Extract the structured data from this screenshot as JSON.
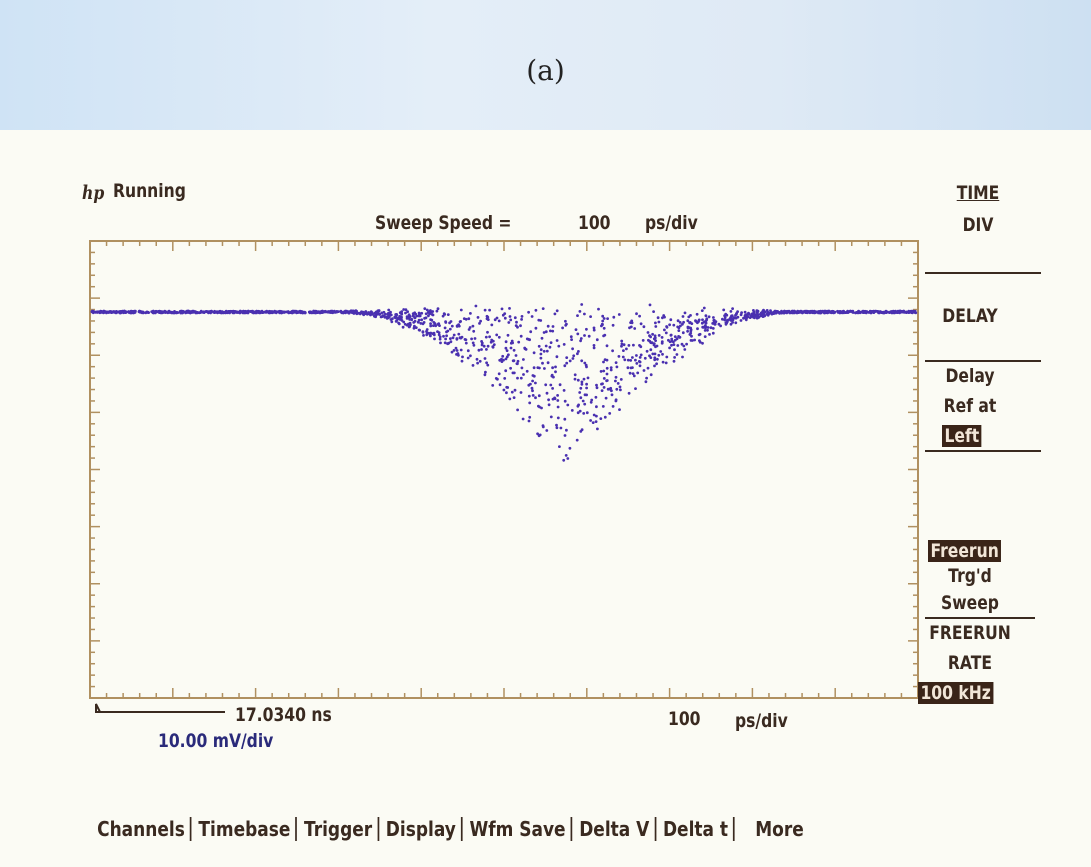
{
  "caption": "(a)",
  "header": {
    "logo": "hp",
    "status": "Running",
    "sweep_label": "Sweep Speed =",
    "sweep_value": "100",
    "sweep_unit": "ps/div"
  },
  "softkeys": {
    "title_top": "TIME",
    "title_bottom": "DIV",
    "delay": "DELAY",
    "delay_ref": [
      "Delay",
      "Ref at"
    ],
    "delay_ref_value": "Left",
    "trigger_value": "Freerun",
    "trigger": [
      "Trg'd",
      "Sweep"
    ],
    "rate": [
      "FREERUN",
      "RATE"
    ],
    "rate_value": "100 kHz"
  },
  "footer": {
    "delay_time": "17.0340 ns",
    "volts_div": "10.00 mV/div",
    "time_value": "100",
    "time_unit": "ps/div"
  },
  "menu": [
    "Channels",
    "Timebase",
    "Trigger",
    "Display",
    "Wfm Save",
    "Delta V",
    "Delta t",
    "More"
  ]
}
